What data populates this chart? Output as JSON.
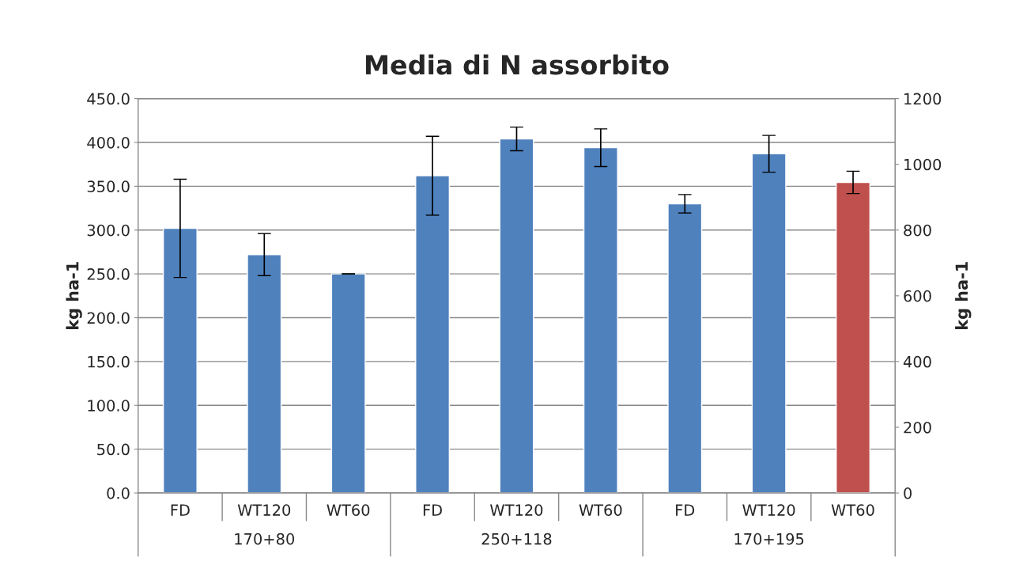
{
  "chart_data": {
    "type": "bar",
    "title": "Media di N assorbito",
    "ylabel": "kg ha-1",
    "y2label": "kg ha-1",
    "categories": [
      "FD",
      "WT120",
      "WT60",
      "FD",
      "WT120",
      "WT60",
      "FD",
      "WT120",
      "WT60"
    ],
    "annotations": [
      "170+80",
      "250+118",
      "170+195"
    ],
    "series": [
      {
        "color": "#4f81bd",
        "values": [
          302,
          272,
          250,
          362,
          404,
          394,
          330,
          387,
          null
        ],
        "errors": [
          56,
          24,
          0,
          45,
          13.5,
          21.5,
          10.5,
          21,
          null
        ]
      },
      {
        "color": "#c0504d",
        "axis": "y2",
        "values": [
          null,
          null,
          null,
          null,
          null,
          null,
          null,
          null,
          945
        ],
        "errors": [
          null,
          null,
          null,
          null,
          null,
          null,
          null,
          null,
          34
        ]
      }
    ],
    "ylim": [
      0,
      450
    ],
    "yticks": [
      {
        "value": 0,
        "label": "0.0"
      },
      {
        "value": 50,
        "label": "50.0"
      },
      {
        "value": 100,
        "label": "100.0"
      },
      {
        "value": 150,
        "label": "150.0"
      },
      {
        "value": 200,
        "label": "200.0"
      },
      {
        "value": 250,
        "label": "250.0"
      },
      {
        "value": 300,
        "label": "300.0"
      },
      {
        "value": 350,
        "label": "350.0"
      },
      {
        "value": 400,
        "label": "400.0"
      },
      {
        "value": 450,
        "label": "450.0"
      }
    ],
    "y2lim": [
      0,
      1200
    ],
    "y2ticks": [
      0,
      200,
      400,
      600,
      800,
      1000,
      1200
    ],
    "grid": "y"
  }
}
